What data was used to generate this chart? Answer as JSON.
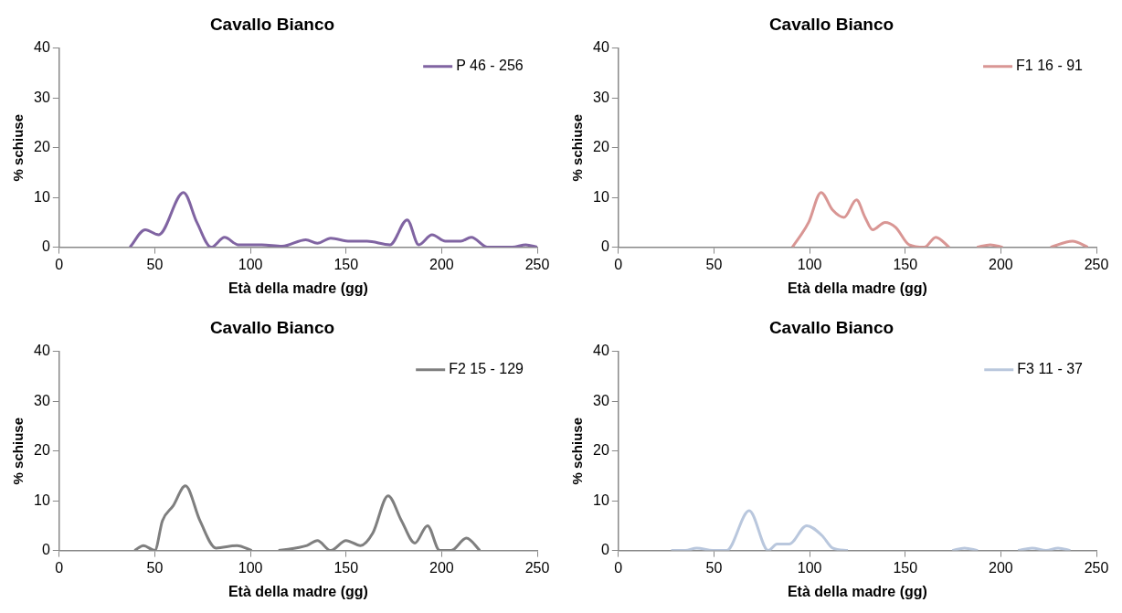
{
  "chart_data": [
    {
      "type": "line",
      "title": "Cavallo Bianco",
      "xlabel": "Età della madre (gg)",
      "ylabel": "% schiuse",
      "xlim": [
        0,
        250
      ],
      "ylim": [
        0,
        40
      ],
      "xticks": [
        0,
        50,
        100,
        150,
        200,
        250
      ],
      "yticks": [
        0,
        10,
        20,
        30,
        40
      ],
      "legend": "top right",
      "x": [
        37,
        45,
        52,
        65,
        72,
        79.5,
        86.5,
        93.6,
        106,
        116.6,
        129,
        135,
        142,
        152,
        161,
        173,
        182,
        188,
        195,
        202,
        210,
        215.5,
        224,
        237,
        244,
        250
      ],
      "series": [
        {
          "name": "P 46 - 256",
          "color": "#8064a2",
          "values": [
            0,
            3.5,
            2.5,
            11,
            5,
            0,
            2,
            0.5,
            0.5,
            0.2,
            1.5,
            0.8,
            1.8,
            1.2,
            1.2,
            0.5,
            5.5,
            0.5,
            2.5,
            1.2,
            1.2,
            2,
            0,
            0,
            0.5,
            0
          ]
        }
      ]
    },
    {
      "type": "line",
      "title": "Cavallo Bianco",
      "xlabel": "Età della madre (gg)",
      "ylabel": "% schiuse",
      "xlim": [
        0,
        250
      ],
      "ylim": [
        0,
        40
      ],
      "xticks": [
        0,
        50,
        100,
        150,
        200,
        250
      ],
      "yticks": [
        0,
        10,
        20,
        30,
        40
      ],
      "legend": "top right",
      "x": [
        91,
        99.5,
        106,
        112,
        118,
        124.5,
        129,
        133,
        139.5,
        145,
        152,
        160,
        166,
        173,
        180,
        187.5,
        194.5,
        201,
        213,
        226,
        237.5,
        245.5
      ],
      "series": [
        {
          "name": "F1 16 - 91",
          "color": "#d99694",
          "values": [
            0,
            5,
            11,
            7.5,
            6,
            9.5,
            6,
            3.5,
            5,
            4,
            0.5,
            0,
            2,
            0,
            null,
            0,
            0.5,
            0,
            null,
            0,
            1.2,
            0
          ]
        }
      ]
    },
    {
      "type": "line",
      "title": "Cavallo Bianco",
      "xlabel": "Età della madre (gg)",
      "ylabel": "% schiuse",
      "xlim": [
        0,
        250
      ],
      "ylim": [
        0,
        40
      ],
      "xticks": [
        0,
        50,
        100,
        150,
        200,
        250
      ],
      "yticks": [
        0,
        10,
        20,
        30,
        40
      ],
      "legend": "top right",
      "x": [
        39.4,
        44,
        50,
        54,
        59.6,
        66,
        73.6,
        82,
        93,
        100.7,
        108,
        114.7,
        129.6,
        135,
        142,
        150,
        157.6,
        164,
        172,
        179,
        186,
        192.6,
        199,
        205,
        213,
        220
      ],
      "series": [
        {
          "name": "F2 15 - 129",
          "color": "#7f7f7f",
          "values": [
            0,
            1,
            0,
            6,
            9,
            13,
            6,
            0.5,
            1,
            0,
            null,
            0,
            1,
            2,
            0,
            2,
            1,
            3.5,
            11,
            6,
            1.5,
            5,
            0,
            0,
            2.5,
            0
          ]
        }
      ]
    },
    {
      "type": "line",
      "title": "Cavallo Bianco",
      "xlabel": "Età della madre (gg)",
      "ylabel": "% schiuse",
      "xlim": [
        0,
        250
      ],
      "ylim": [
        0,
        40
      ],
      "xticks": [
        0,
        50,
        100,
        150,
        200,
        250
      ],
      "yticks": [
        0,
        10,
        20,
        30,
        40
      ],
      "legend": "top right",
      "x": [
        27.6,
        35,
        41,
        49.4,
        56.6,
        68.4,
        78.4,
        83,
        89.3,
        98.5,
        106.5,
        112,
        120,
        150,
        174.6,
        181,
        188,
        198,
        209,
        216.4,
        223.7,
        230,
        236.4
      ],
      "series": [
        {
          "name": "F3 11 - 37",
          "color": "#b9c7dd",
          "values": [
            0,
            0,
            0.5,
            0,
            0,
            8,
            0,
            1.3,
            1.3,
            5,
            3,
            0.5,
            0,
            null,
            0,
            0.5,
            0,
            null,
            0,
            0.5,
            0,
            0.5,
            0
          ]
        }
      ]
    }
  ]
}
